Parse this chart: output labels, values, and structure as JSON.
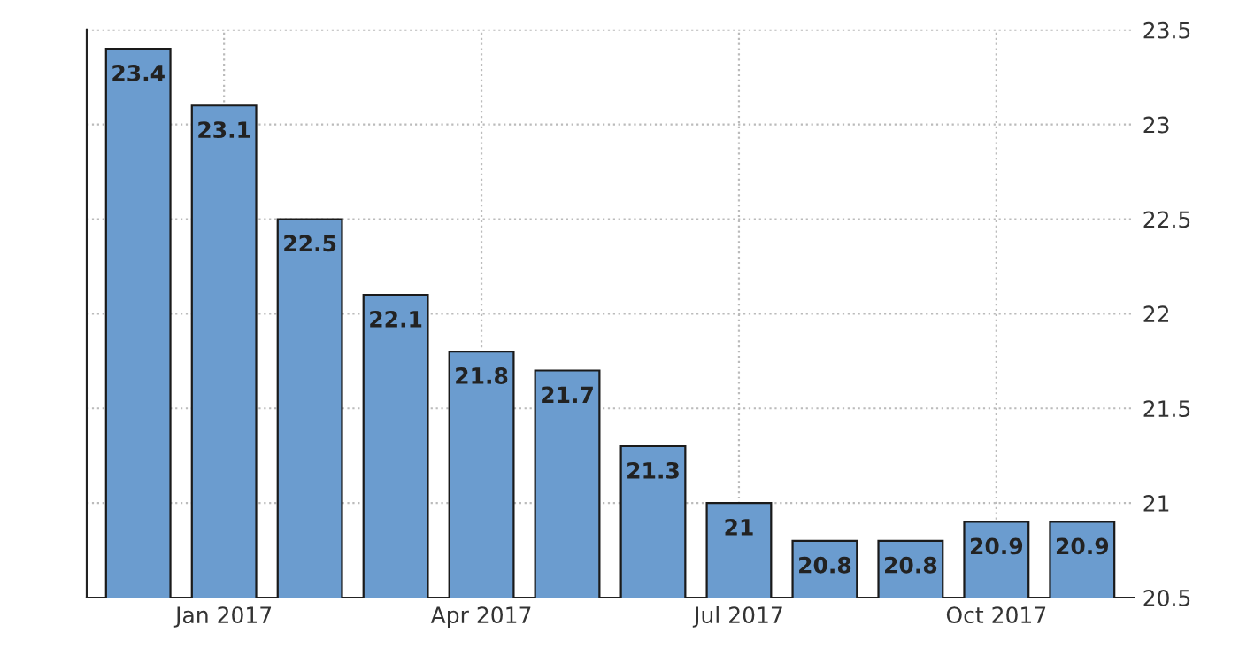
{
  "chart_data": {
    "type": "bar",
    "categories": [
      null,
      "Jan 2017",
      null,
      null,
      "Apr 2017",
      null,
      null,
      "Jul 2017",
      null,
      null,
      "Oct 2017",
      null
    ],
    "values": [
      23.4,
      23.1,
      22.5,
      22.1,
      21.8,
      21.7,
      21.3,
      21,
      20.8,
      20.8,
      20.9,
      20.9
    ],
    "color": "#6b9ccf",
    "ylim": [
      20.5,
      23.5
    ],
    "yticks": [
      20.5,
      21,
      21.5,
      22,
      22.5,
      23,
      23.5
    ],
    "grid": true,
    "data_labels": true
  }
}
